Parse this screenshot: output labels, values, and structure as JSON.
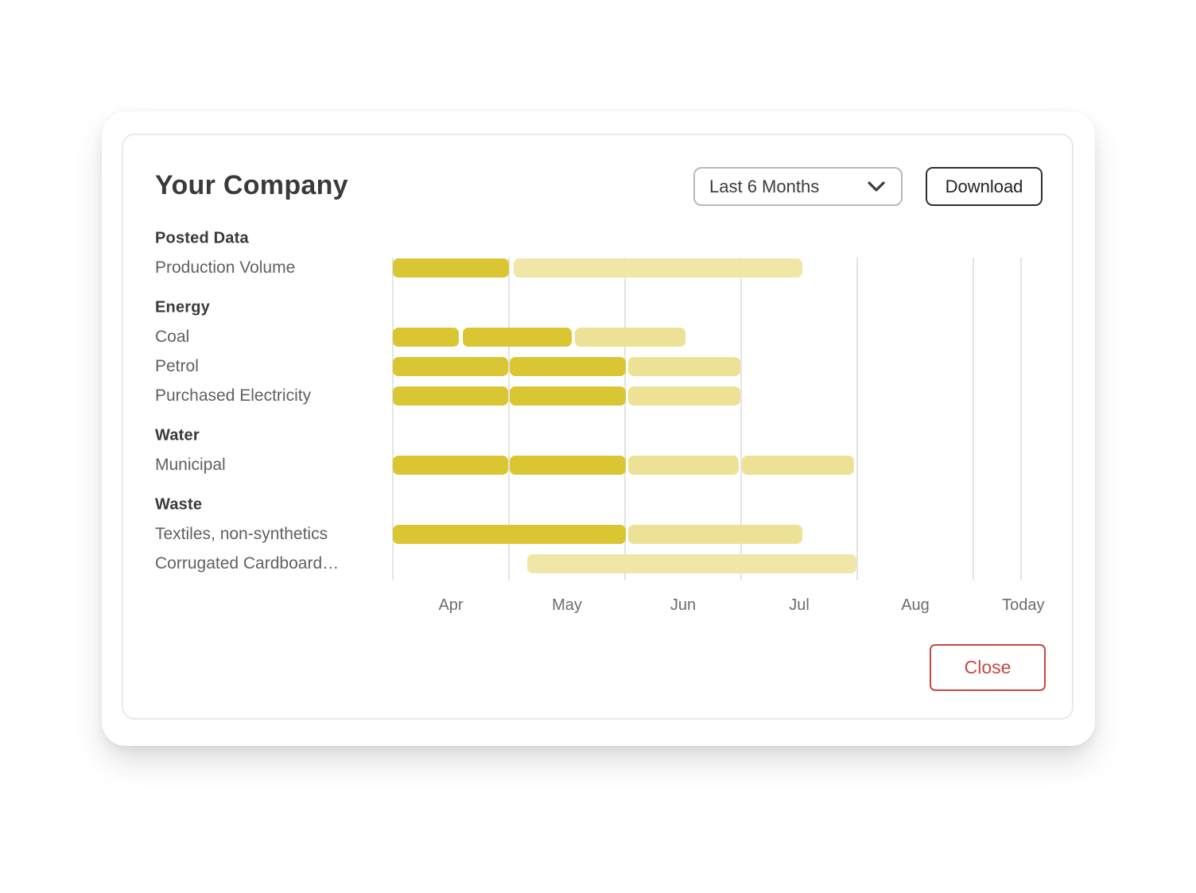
{
  "header": {
    "title": "Your Company",
    "range_selector": {
      "value": "Last 6 Months",
      "chevron_icon": "chevron-down-icon"
    },
    "download_label": "Download"
  },
  "footer": {
    "close_label": "Close"
  },
  "colors": {
    "bar_dark": "#DAC633",
    "bar_light": "#EDE196",
    "bar_pale": "#F0E6A8",
    "gridline": "#E4E4E4",
    "close_accent": "#C9473F"
  },
  "chart_data": {
    "type": "gantt",
    "title": "Your Company",
    "time_axis": {
      "unit": "months (0 = start of Apr)",
      "tick_labels": [
        {
          "label": "Apr",
          "u": 0.5
        },
        {
          "label": "May",
          "u": 1.5
        },
        {
          "label": "Jun",
          "u": 2.5
        },
        {
          "label": "Jul",
          "u": 3.5
        },
        {
          "label": "Aug",
          "u": 4.5
        },
        {
          "label": "Today",
          "u": 5.43
        }
      ],
      "gridlines_u": [
        0,
        1,
        2,
        3,
        4,
        5,
        5.41
      ],
      "range_u": [
        0,
        5.41
      ],
      "grid": true
    },
    "rows": [
      {
        "type": "group",
        "label": "Posted Data"
      },
      {
        "type": "item",
        "label": "Production Volume",
        "segments": [
          {
            "start": 0,
            "end": 1.0,
            "shade": "dark"
          },
          {
            "start": 1.04,
            "end": 3.53,
            "shade": "pale"
          }
        ]
      },
      {
        "type": "group",
        "label": "Energy"
      },
      {
        "type": "item",
        "label": "Coal",
        "segments": [
          {
            "start": 0,
            "end": 0.57,
            "shade": "dark"
          },
          {
            "start": 0.6,
            "end": 1.54,
            "shade": "dark"
          },
          {
            "start": 1.57,
            "end": 2.52,
            "shade": "light"
          }
        ]
      },
      {
        "type": "item",
        "label": "Petrol",
        "segments": [
          {
            "start": 0,
            "end": 0.99,
            "shade": "dark"
          },
          {
            "start": 1.01,
            "end": 2.01,
            "shade": "dark"
          },
          {
            "start": 2.03,
            "end": 2.99,
            "shade": "light"
          }
        ]
      },
      {
        "type": "item",
        "label": "Purchased Electricity",
        "segments": [
          {
            "start": 0,
            "end": 0.99,
            "shade": "dark"
          },
          {
            "start": 1.01,
            "end": 2.01,
            "shade": "dark"
          },
          {
            "start": 2.03,
            "end": 2.99,
            "shade": "light"
          }
        ]
      },
      {
        "type": "group",
        "label": "Water"
      },
      {
        "type": "item",
        "label": "Municipal",
        "segments": [
          {
            "start": 0,
            "end": 0.99,
            "shade": "dark"
          },
          {
            "start": 1.01,
            "end": 2.01,
            "shade": "dark"
          },
          {
            "start": 2.03,
            "end": 2.98,
            "shade": "light"
          },
          {
            "start": 3.01,
            "end": 3.97,
            "shade": "light"
          }
        ]
      },
      {
        "type": "group",
        "label": "Waste"
      },
      {
        "type": "item",
        "label": "Textiles, non-synthetics",
        "segments": [
          {
            "start": 0,
            "end": 2.01,
            "shade": "dark"
          },
          {
            "start": 2.03,
            "end": 3.53,
            "shade": "light"
          }
        ]
      },
      {
        "type": "item",
        "label": "Corrugated Cardboard…",
        "segments": [
          {
            "start": 1.16,
            "end": 3.99,
            "shade": "pale"
          }
        ]
      }
    ]
  }
}
